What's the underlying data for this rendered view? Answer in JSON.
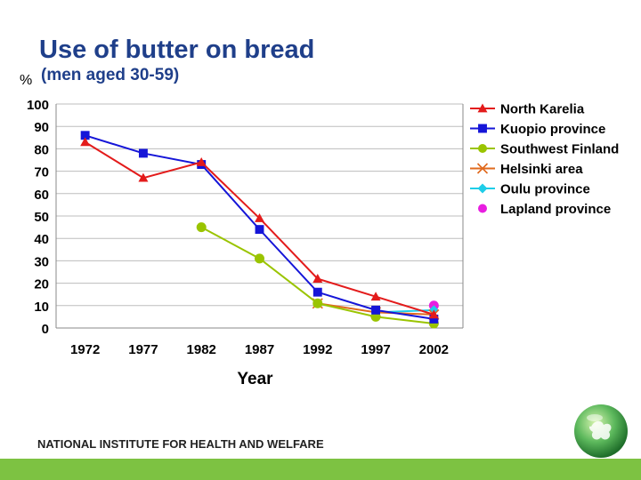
{
  "header": {
    "title": "Use of butter on bread",
    "subtitle": "(men aged 30-59)",
    "unit": "%"
  },
  "footer": {
    "text": "NATIONAL INSTITUTE FOR HEALTH AND WELFARE"
  },
  "colors": {
    "bar": "#7dc242",
    "globe": "#5cb85c"
  },
  "chart_data": {
    "type": "line",
    "title": "Use of butter on bread",
    "xlabel": "Year",
    "ylabel": "%",
    "x": [
      1972,
      1977,
      1982,
      1987,
      1992,
      1997,
      2002
    ],
    "xticks": [
      "1972",
      "1977",
      "1982",
      "1987",
      "1992",
      "1997",
      "2002"
    ],
    "yticks": [
      "0",
      "10",
      "20",
      "30",
      "40",
      "50",
      "60",
      "70",
      "80",
      "90",
      "100"
    ],
    "ylim": [
      0,
      100
    ],
    "grid": "horizontal",
    "legend_position": "right",
    "series": [
      {
        "name": "North Karelia",
        "color": "#e31b1b",
        "marker": "triangle",
        "values": [
          83,
          67,
          74,
          49,
          22,
          14,
          6
        ]
      },
      {
        "name": "Kuopio province",
        "color": "#1515d8",
        "marker": "square",
        "values": [
          86,
          78,
          73,
          44,
          16,
          8,
          4
        ]
      },
      {
        "name": "Southwest Finland",
        "color": "#9ac400",
        "marker": "circle",
        "values": [
          null,
          null,
          45,
          31,
          11,
          5,
          2
        ]
      },
      {
        "name": "Helsinki area",
        "color": "#e06a1e",
        "marker": "x",
        "values": [
          null,
          null,
          null,
          null,
          11,
          7,
          6
        ]
      },
      {
        "name": "Oulu province",
        "color": "#1ecde8",
        "marker": "diamond",
        "values": [
          null,
          null,
          null,
          null,
          null,
          7,
          8
        ]
      },
      {
        "name": "Lapland province",
        "color": "#e81ee0",
        "marker": "circle",
        "values": [
          null,
          null,
          null,
          null,
          null,
          null,
          10
        ]
      }
    ]
  }
}
